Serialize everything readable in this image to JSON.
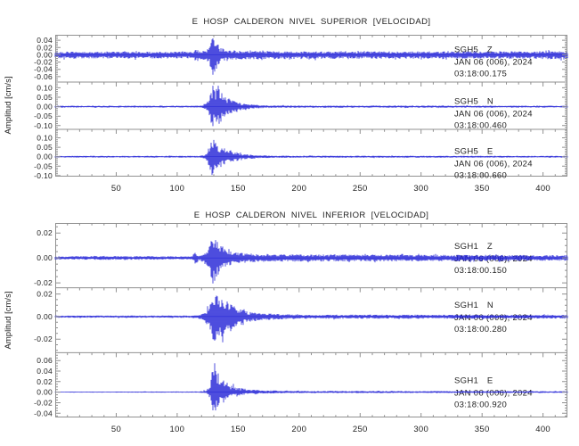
{
  "figure": {
    "background": "#ffffff",
    "trace_color": "#2121d6",
    "frame_color": "#919191",
    "text_color": "#222222"
  },
  "chart_data": [
    {
      "type": "line",
      "title": "E HOSP CALDERON NIVEL SUPERIOR [VELOCIDAD]",
      "ylabel": "Amplitud [cm/s]",
      "xlabel": "",
      "xlim": [
        0,
        420
      ],
      "xticks": [
        50,
        100,
        150,
        200,
        250,
        300,
        350,
        400
      ],
      "xtick_minor_step": 10,
      "grid": false,
      "traces": [
        {
          "station": "SGH5",
          "component": "Z",
          "date_label": "JAN 06 (006), 2024",
          "time_label": "03:18:00.175",
          "ylim": [
            -0.075,
            0.055
          ],
          "yticks": [
            0.04,
            0.02,
            0.0,
            -0.02,
            -0.04,
            -0.06
          ],
          "ytick_minor_step": 0.005,
          "ytick_decimals": 2,
          "seed": 101,
          "asym": [
            0.85,
            1.0
          ],
          "envelope": [
            [
              0,
              0.01
            ],
            [
              60,
              0.0105
            ],
            [
              100,
              0.01
            ],
            [
              113,
              0.01
            ],
            [
              115,
              0.024
            ],
            [
              118,
              0.013
            ],
            [
              124,
              0.013
            ],
            [
              127,
              0.032
            ],
            [
              129,
              0.062
            ],
            [
              132,
              0.05
            ],
            [
              135,
              0.024
            ],
            [
              141,
              0.017
            ],
            [
              150,
              0.013
            ],
            [
              220,
              0.011
            ],
            [
              330,
              0.011
            ],
            [
              420,
              0.012
            ]
          ]
        },
        {
          "station": "SGH5",
          "component": "N",
          "date_label": "JAN 06 (006), 2024",
          "time_label": "03:18:00.460",
          "ylim": [
            -0.12,
            0.13
          ],
          "yticks": [
            0.1,
            0.05,
            0.0,
            -0.05,
            -0.1
          ],
          "ytick_minor_step": 0.01,
          "ytick_decimals": 2,
          "seed": 202,
          "asym": [
            1,
            1
          ],
          "envelope": [
            [
              0,
              0.005
            ],
            [
              110,
              0.005
            ],
            [
              120,
              0.006
            ],
            [
              124,
              0.02
            ],
            [
              127,
              0.06
            ],
            [
              129,
              0.12
            ],
            [
              131,
              0.08
            ],
            [
              134,
              0.115
            ],
            [
              137,
              0.065
            ],
            [
              141,
              0.048
            ],
            [
              146,
              0.032
            ],
            [
              152,
              0.02
            ],
            [
              160,
              0.012
            ],
            [
              170,
              0.008
            ],
            [
              190,
              0.006
            ],
            [
              420,
              0.005
            ]
          ]
        },
        {
          "station": "SGH5",
          "component": "E",
          "date_label": "JAN 06 (006), 2024",
          "time_label": "03:18:00.660",
          "ylim": [
            -0.105,
            0.145
          ],
          "yticks": [
            0.1,
            0.05,
            0.0,
            -0.05,
            -0.1
          ],
          "ytick_minor_step": 0.01,
          "ytick_decimals": 2,
          "seed": 303,
          "asym": [
            1,
            0.95
          ],
          "envelope": [
            [
              0,
              0.0045
            ],
            [
              115,
              0.005
            ],
            [
              122,
              0.009
            ],
            [
              125,
              0.03
            ],
            [
              127,
              0.08
            ],
            [
              129,
              0.105
            ],
            [
              132,
              0.07
            ],
            [
              135,
              0.052
            ],
            [
              139,
              0.042
            ],
            [
              144,
              0.03
            ],
            [
              150,
              0.022
            ],
            [
              157,
              0.013
            ],
            [
              166,
              0.009
            ],
            [
              178,
              0.006
            ],
            [
              420,
              0.0045
            ]
          ]
        }
      ]
    },
    {
      "type": "line",
      "title": "E HOSP CALDERON NIVEL INFERIOR [VELOCIDAD]",
      "ylabel": "Amplitud [cm/s]",
      "xlabel": "",
      "xlim": [
        0,
        420
      ],
      "xticks": [
        50,
        100,
        150,
        200,
        250,
        300,
        350,
        400
      ],
      "xtick_minor_step": 10,
      "grid": false,
      "traces": [
        {
          "station": "SGH1",
          "component": "Z",
          "date_label": "JAN 06 (006), 2024",
          "time_label": "03:18:00.150",
          "ylim": [
            -0.024,
            0.028
          ],
          "yticks": [
            0.02,
            0.0,
            -0.02
          ],
          "ytick_minor_step": 0.005,
          "ytick_decimals": 2,
          "seed": 404,
          "asym": [
            0.95,
            1.0
          ],
          "envelope": [
            [
              0,
              0.0013
            ],
            [
              40,
              0.0016
            ],
            [
              90,
              0.0014
            ],
            [
              112,
              0.0014
            ],
            [
              115,
              0.0055
            ],
            [
              118,
              0.002
            ],
            [
              123,
              0.004
            ],
            [
              126,
              0.009
            ],
            [
              129,
              0.023
            ],
            [
              132,
              0.016
            ],
            [
              135,
              0.012
            ],
            [
              139,
              0.008
            ],
            [
              146,
              0.005
            ],
            [
              155,
              0.004
            ],
            [
              175,
              0.003
            ],
            [
              260,
              0.0028
            ],
            [
              420,
              0.0024
            ]
          ]
        },
        {
          "station": "SGH1",
          "component": "N",
          "date_label": "JAN 06 (006), 2024",
          "time_label": "03:18:00.280",
          "ylim": [
            -0.032,
            0.0255
          ],
          "yticks": [
            0.02,
            0.0,
            -0.02
          ],
          "ytick_minor_step": 0.005,
          "ytick_decimals": 2,
          "seed": 505,
          "asym": [
            0.85,
            1.0
          ],
          "envelope": [
            [
              0,
              0.001
            ],
            [
              115,
              0.0012
            ],
            [
              122,
              0.0035
            ],
            [
              126,
              0.01
            ],
            [
              129,
              0.021
            ],
            [
              131,
              0.027
            ],
            [
              134,
              0.019
            ],
            [
              137,
              0.024
            ],
            [
              140,
              0.017
            ],
            [
              145,
              0.012
            ],
            [
              151,
              0.008
            ],
            [
              158,
              0.005
            ],
            [
              168,
              0.0035
            ],
            [
              200,
              0.002
            ],
            [
              420,
              0.0018
            ]
          ]
        },
        {
          "station": "SGH1",
          "component": "E",
          "date_label": "JAN 06 (006), 2024",
          "time_label": "03:18:00.920",
          "ylim": [
            -0.048,
            0.075
          ],
          "yticks": [
            0.06,
            0.04,
            0.02,
            0.0,
            -0.02,
            -0.04
          ],
          "ytick_minor_step": 0.005,
          "ytick_decimals": 2,
          "seed": 606,
          "asym": [
            1,
            0.72
          ],
          "envelope": [
            [
              0,
              0.001
            ],
            [
              118,
              0.0013
            ],
            [
              124,
              0.004
            ],
            [
              127,
              0.016
            ],
            [
              129,
              0.05
            ],
            [
              131,
              0.062
            ],
            [
              133,
              0.04
            ],
            [
              136,
              0.027
            ],
            [
              139,
              0.02
            ],
            [
              144,
              0.013
            ],
            [
              150,
              0.009
            ],
            [
              157,
              0.006
            ],
            [
              168,
              0.004
            ],
            [
              190,
              0.0025
            ],
            [
              420,
              0.002
            ]
          ]
        }
      ]
    }
  ]
}
